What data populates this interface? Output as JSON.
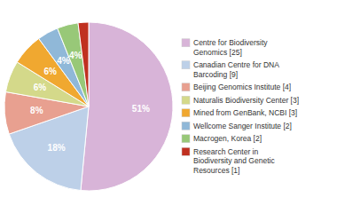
{
  "chart_data": {
    "type": "pie",
    "categories": [
      "Centre for Biodiversity\nGenomics [25]",
      "Canadian Centre for DNA\nBarcoding [9]",
      "Beijing Genomics Institute [4]",
      "Naturalis Biodiversity Center [3]",
      "Mined from GenBank, NCBI [3]",
      "Wellcome Sanger Institute [2]",
      "Macrogen, Korea [2]",
      "Research Center in\nBiodiversity and Genetic\nResources [1]"
    ],
    "values": [
      51,
      18,
      8,
      6,
      6,
      4,
      4,
      2
    ],
    "value_labels": [
      "51%",
      "18%",
      "8%",
      "6%",
      "6%",
      "4%",
      "4%",
      null
    ],
    "data_labels": true,
    "colors": [
      "#d8b4d8",
      "#bdd0e8",
      "#e8a090",
      "#d4d98a",
      "#f0a830",
      "#90b8d8",
      "#98c878",
      "#c03020"
    ],
    "legend": "right"
  }
}
